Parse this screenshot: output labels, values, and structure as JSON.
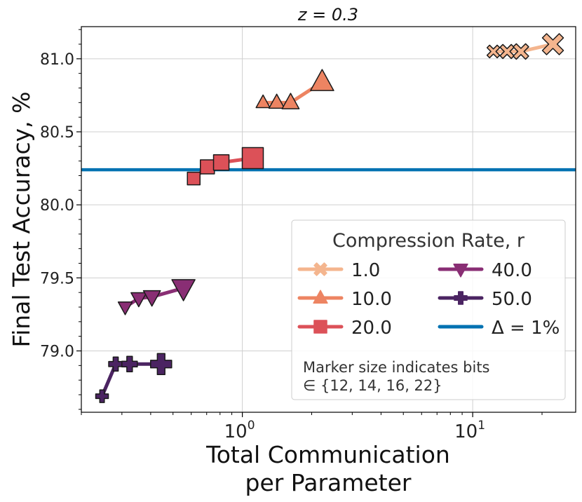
{
  "chart_data": {
    "type": "line",
    "title": "z = 0.3",
    "xlabel": [
      "Total Communication",
      "per Parameter"
    ],
    "ylabel": "Final Test Accuracy, %",
    "xscale": "log",
    "xlim": [
      0.2,
      28
    ],
    "ylim": [
      78.58,
      81.22
    ],
    "xticks": [
      {
        "value": 1,
        "base": "10",
        "exp": "0"
      },
      {
        "value": 10,
        "base": "10",
        "exp": "1"
      }
    ],
    "yticks": [
      "79.0",
      "79.5",
      "80.0",
      "80.5",
      "81.0"
    ],
    "grid": true,
    "legend": {
      "title": "Compression Rate, r",
      "placement": "lower-right",
      "note": [
        "Marker size indicates bits",
        "∈ {12, 14, 16, 22}"
      ]
    },
    "series": [
      {
        "name": "1.0",
        "color": "#f4b58e",
        "marker": "x",
        "x": [
          12.3,
          14.1,
          16.2,
          22.3
        ],
        "y": [
          81.05,
          81.05,
          81.05,
          81.1
        ]
      },
      {
        "name": "10.0",
        "color": "#ed8462",
        "marker": "triangle-up",
        "x": [
          1.23,
          1.41,
          1.62,
          2.22
        ],
        "y": [
          80.7,
          80.7,
          80.7,
          80.84
        ]
      },
      {
        "name": "20.0",
        "color": "#dc5158",
        "marker": "square",
        "x": [
          0.615,
          0.705,
          0.81,
          1.11
        ],
        "y": [
          80.18,
          80.26,
          80.29,
          80.32
        ]
      },
      {
        "name": "40.0",
        "color": "#892e74",
        "marker": "triangle-down",
        "x": [
          0.31,
          0.355,
          0.405,
          0.555
        ],
        "y": [
          79.3,
          79.36,
          79.37,
          79.43
        ]
      },
      {
        "name": "50.0",
        "color": "#4b2462",
        "marker": "plus",
        "x": [
          0.246,
          0.282,
          0.324,
          0.444
        ],
        "y": [
          78.69,
          78.91,
          78.91,
          78.91
        ]
      }
    ],
    "reference_line": {
      "name": "Δ = 1%",
      "color": "#0072b2",
      "y": 80.24
    }
  }
}
